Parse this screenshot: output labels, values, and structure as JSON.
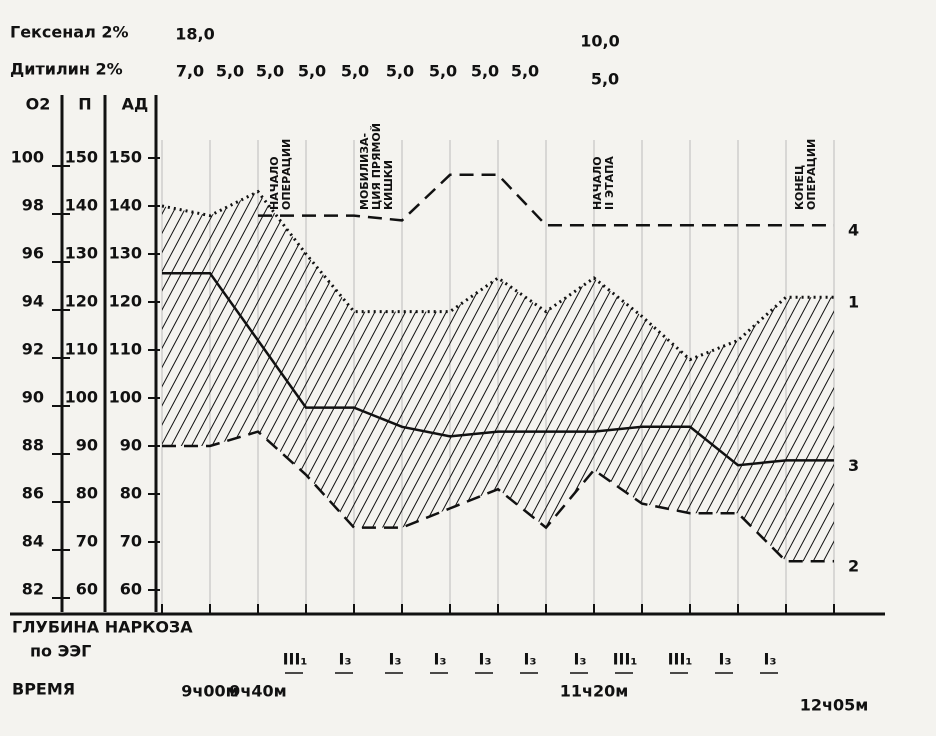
{
  "chart_data": {
    "type": "line",
    "drugs": [
      {
        "label": "Гексенал 2%",
        "doses": [
          "18,0",
          "10,0"
        ]
      },
      {
        "label": "Дитилин 2%",
        "doses": [
          "7,0",
          "5,0",
          "5,0",
          "5,0",
          "5,0",
          "5,0",
          "5,0",
          "5,0",
          "5,0",
          "5,0"
        ]
      }
    ],
    "ylabel": "АД",
    "ylim": [
      60,
      150
    ],
    "yticks": [
      60,
      70,
      80,
      90,
      100,
      110,
      120,
      130,
      140,
      150
    ],
    "pulse_label": "П",
    "pulse_ticks": [
      60,
      70,
      80,
      90,
      100,
      110,
      120,
      130,
      140,
      150
    ],
    "y2label": "O2",
    "y2lim": [
      82,
      100
    ],
    "y2ticks": [
      82,
      84,
      86,
      88,
      90,
      92,
      94,
      96,
      98,
      100
    ],
    "categories": [
      null,
      "9ч00м",
      "9ч40м",
      null,
      null,
      null,
      null,
      null,
      null,
      "11ч20м",
      null,
      null,
      null,
      null,
      "12ч05м"
    ],
    "xlabel": "ВРЕМЯ",
    "series": [
      {
        "name": "1",
        "color": "#111111",
        "style": "dotted",
        "values": [
          140,
          138,
          143,
          130,
          118,
          118,
          118,
          125,
          118,
          125,
          117,
          108,
          112,
          121,
          121
        ]
      },
      {
        "name": "2",
        "color": "#111111",
        "style": "dashed",
        "values": [
          90,
          90,
          93,
          84,
          73,
          73,
          77,
          81,
          73,
          85,
          78,
          76,
          76,
          66,
          66
        ]
      },
      {
        "name": "3",
        "color": "#111111",
        "style": "solid",
        "values": [
          126,
          126,
          112,
          98,
          98,
          94,
          92,
          93,
          93,
          93,
          94,
          94,
          86,
          87,
          87
        ]
      },
      {
        "name": "4",
        "color": "#111111",
        "style": "dashed",
        "axis": "y2",
        "values": [
          null,
          null,
          97.6,
          97.6,
          97.6,
          97.4,
          99.3,
          99.3,
          97.2,
          97.2,
          97.2,
          97.2,
          97.2,
          97.2,
          97.2
        ]
      }
    ],
    "annotations": [
      {
        "lines": [
          "НАЧАЛО",
          "ОПЕРАЦИИ"
        ]
      },
      {
        "lines": [
          "МОБИЛИЗА-",
          "ЦИЯ ПРЯМОЙ",
          "КИШКИ"
        ]
      },
      {
        "lines": [
          "НАЧАЛО",
          "II ЭТАПА"
        ]
      },
      {
        "lines": [
          "КОНЕЦ",
          "ОПЕРАЦИИ"
        ]
      }
    ],
    "eeg": {
      "label": [
        "ГЛУБИНА НАРКОЗА",
        "по ЭЭГ"
      ],
      "stages": [
        "III₁",
        "I₃",
        "I₃",
        "I₃",
        "I₃",
        "I₃",
        "I₃",
        "III₁",
        "III₁",
        "I₃",
        "I₃"
      ]
    }
  }
}
